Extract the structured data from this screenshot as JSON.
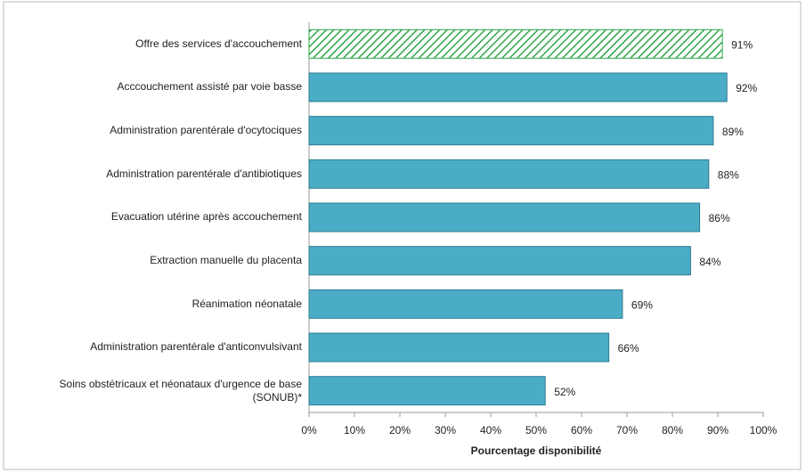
{
  "chart_data": {
    "type": "barh",
    "categories": [
      "Offre des services d'accouchement",
      "Acccouchement assisté par voie basse",
      "Administration parentérale d'ocytociques",
      "Administration parentérale d'antibiotiques",
      "Evacuation utérine après accouchement",
      "Extraction manuelle du placenta",
      "Réanimation néonatale",
      "Administration parentérale d'anticonvulsivant",
      "Soins obstétricaux et néonataux d'urgence de base (SONUB)*"
    ],
    "values": [
      91,
      92,
      89,
      88,
      86,
      84,
      69,
      66,
      52
    ],
    "value_labels": [
      "91%",
      "92%",
      "89%",
      "88%",
      "86%",
      "84%",
      "69%",
      "66%",
      "52%"
    ],
    "colors": [
      "#2ea84a",
      "#4bacc6",
      "#4bacc6",
      "#4bacc6",
      "#4bacc6",
      "#4bacc6",
      "#4bacc6",
      "#4bacc6",
      "#4bacc6"
    ],
    "bar_styles": [
      "hatched",
      "solid",
      "solid",
      "solid",
      "solid",
      "solid",
      "solid",
      "solid",
      "solid"
    ],
    "xlabel": "Pourcentage disponibilité",
    "xlim": [
      0,
      100
    ],
    "xticks": [
      {
        "value": 0,
        "label": "0%"
      },
      {
        "value": 10,
        "label": "10%"
      },
      {
        "value": 20,
        "label": "20%"
      },
      {
        "value": 30,
        "label": "30%"
      },
      {
        "value": 40,
        "label": "40%"
      },
      {
        "value": 50,
        "label": "50%"
      },
      {
        "value": 60,
        "label": "60%"
      },
      {
        "value": 70,
        "label": "70%"
      },
      {
        "value": 80,
        "label": "80%"
      },
      {
        "value": 90,
        "label": "90%"
      },
      {
        "value": 100,
        "label": "100%"
      }
    ],
    "grid": false
  }
}
